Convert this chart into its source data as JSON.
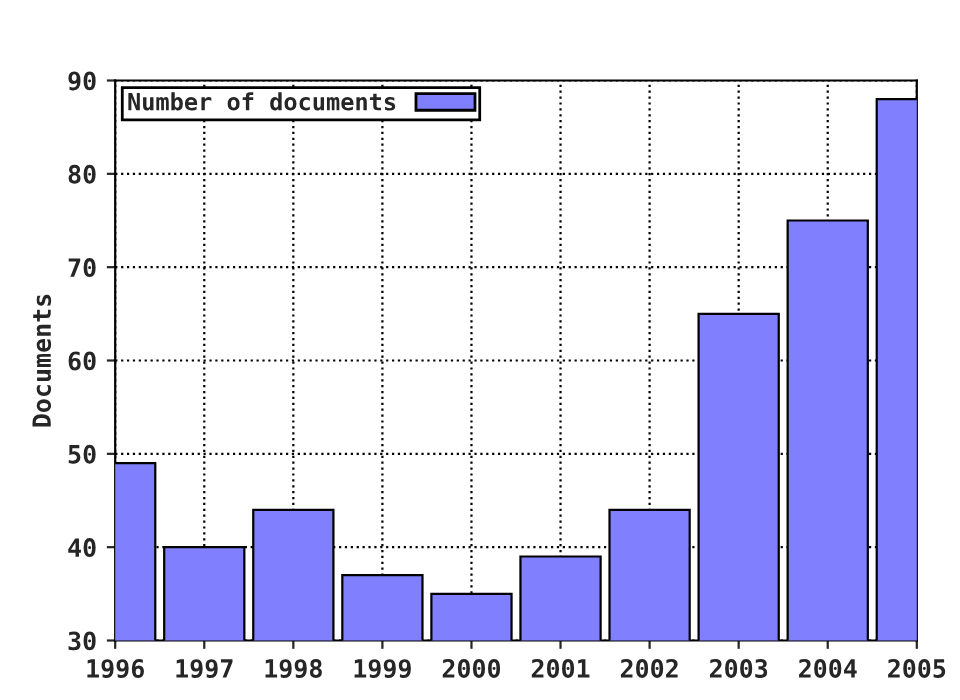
{
  "chart_data": {
    "type": "bar",
    "ylabel": "Documents",
    "x": [
      1996,
      1997,
      1998,
      1999,
      2000,
      2001,
      2002,
      2003,
      2004,
      2005
    ],
    "series": [
      {
        "name": "Number of documents",
        "color": "#8080ff",
        "values": [
          49,
          40,
          44,
          37,
          35,
          39,
          44,
          65,
          75,
          88
        ]
      }
    ],
    "xlim": [
      1996,
      2005
    ],
    "xticks": [
      1996,
      1997,
      1998,
      1999,
      2000,
      2001,
      2002,
      2003,
      2004,
      2005
    ],
    "ylim": [
      30,
      90
    ],
    "yticks": [
      30,
      40,
      50,
      60,
      70,
      80,
      90
    ],
    "grid": true,
    "legend": "top left"
  }
}
